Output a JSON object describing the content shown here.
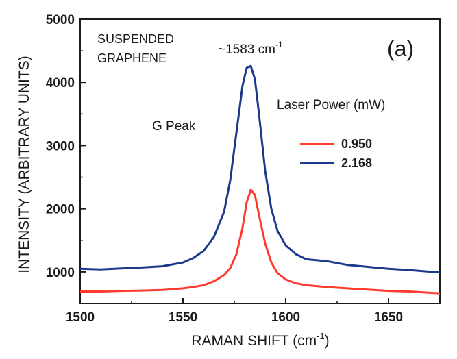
{
  "chart_data": {
    "type": "line",
    "panel_label": "(a)",
    "xlabel": "RAMAN SHIFT (cm",
    "xlabel_sup": "-1",
    "xlabel_tail": ")",
    "ylabel": "INTENSITY (ARBITRARY UNITS)",
    "xlim": [
      1500,
      1675
    ],
    "ylim": [
      500,
      5000
    ],
    "xticks": [
      1500,
      1550,
      1600,
      1650
    ],
    "yticks": [
      1000,
      2000,
      3000,
      4000,
      5000
    ],
    "annotations": {
      "sample_line1": "SUSPENDED",
      "sample_line2": "GRAPHENE",
      "peak_position": "~1583 cm",
      "peak_position_sup": "-1",
      "peak_name": "G Peak"
    },
    "legend": {
      "title": "Laser Power (mW)",
      "placement": "right"
    },
    "series": [
      {
        "name": "0.950",
        "color": "#ff3b2f",
        "x": [
          1500,
          1510,
          1520,
          1530,
          1540,
          1550,
          1555,
          1560,
          1565,
          1570,
          1573,
          1576,
          1579,
          1581,
          1583,
          1585,
          1587,
          1590,
          1593,
          1596,
          1600,
          1605,
          1610,
          1620,
          1630,
          1640,
          1650,
          1660,
          1675
        ],
        "values": [
          690,
          690,
          700,
          705,
          715,
          740,
          760,
          790,
          850,
          950,
          1060,
          1280,
          1700,
          2100,
          2300,
          2220,
          1900,
          1450,
          1150,
          980,
          880,
          820,
          790,
          760,
          740,
          720,
          700,
          690,
          660
        ]
      },
      {
        "name": "2.168",
        "color": "#1c3a8c",
        "x": [
          1500,
          1510,
          1520,
          1530,
          1540,
          1550,
          1555,
          1560,
          1565,
          1570,
          1573,
          1576,
          1579,
          1581,
          1583,
          1585,
          1587,
          1590,
          1593,
          1596,
          1600,
          1605,
          1610,
          1620,
          1630,
          1640,
          1650,
          1660,
          1675
        ],
        "values": [
          1050,
          1040,
          1055,
          1070,
          1090,
          1150,
          1220,
          1330,
          1550,
          1950,
          2450,
          3200,
          3950,
          4230,
          4260,
          4050,
          3500,
          2600,
          2000,
          1650,
          1420,
          1280,
          1200,
          1170,
          1110,
          1080,
          1050,
          1030,
          990
        ]
      }
    ]
  }
}
